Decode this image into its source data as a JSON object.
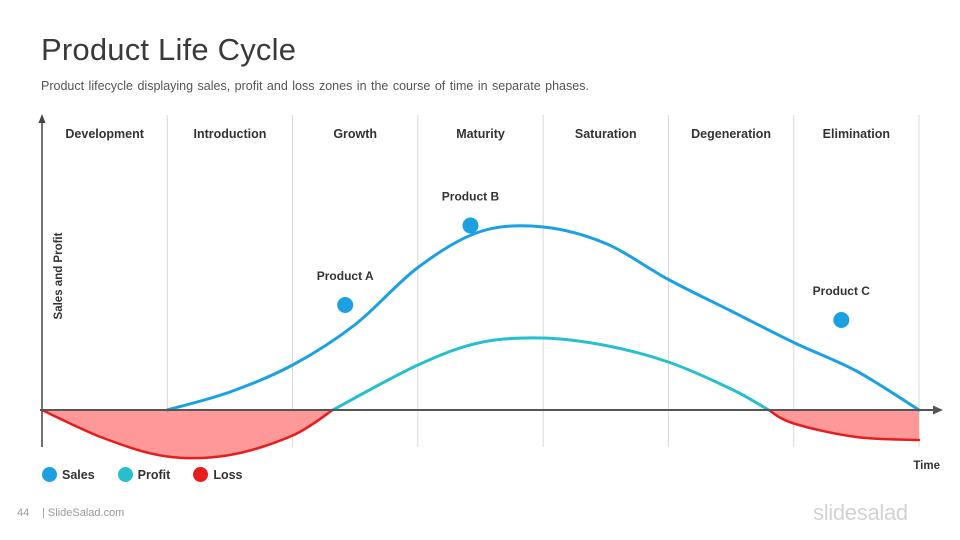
{
  "slide": {
    "title": "Product Life Cycle",
    "subtitle": "Product lifecycle displaying sales, profit  and loss zones in the course of time in separate phases.",
    "page_number": "44",
    "footer_site": "| SlideSalad.com",
    "brand_logo": "slidesalad"
  },
  "chart_data": {
    "type": "line",
    "phases": [
      "Development",
      "Introduction",
      "Growth",
      "Maturity",
      "Saturation",
      "Degeneration",
      "Elimination"
    ],
    "ylabel": "Sales and Profit",
    "xlabel": "Time",
    "grid": "vertical phase dividers",
    "series": [
      {
        "name": "Sales",
        "color": "#1ba1e2",
        "x": [
          1.0,
          1.5,
          2.0,
          2.5,
          3.0,
          3.5,
          4.0,
          4.5,
          5.0,
          5.5,
          6.0,
          6.5,
          7.0
        ],
        "values": [
          0,
          12,
          30,
          57,
          95,
          119,
          122,
          111,
          87,
          66,
          45,
          26,
          0
        ]
      },
      {
        "name": "Profit",
        "color": "#26c0cc",
        "x": [
          2.32,
          3.0,
          3.5,
          4.0,
          4.5,
          5.0,
          5.5,
          5.8
        ],
        "values": [
          0,
          30,
          45,
          48,
          43,
          32,
          14,
          0
        ]
      },
      {
        "name": "Loss",
        "color": "#e81c1c",
        "fill": "#ff9999",
        "x": [
          0.0,
          0.5,
          1.0,
          1.5,
          2.0,
          2.32,
          5.8,
          6.0,
          6.5,
          7.0
        ],
        "values": [
          0,
          -19,
          -31,
          -30,
          -17,
          0,
          0,
          -9,
          -18,
          -20
        ]
      }
    ],
    "annotations": [
      {
        "label": "Product  A",
        "series": "Sales",
        "x": 2.42,
        "y": 70
      },
      {
        "label": "Product  B",
        "series": "Sales",
        "x": 3.42,
        "y": 123
      },
      {
        "label": "Product  C",
        "series": "Sales",
        "x": 6.38,
        "y": 60
      }
    ],
    "xlim": [
      0,
      7
    ],
    "ylim": [
      -30,
      155
    ],
    "legend": "bottom-left"
  }
}
